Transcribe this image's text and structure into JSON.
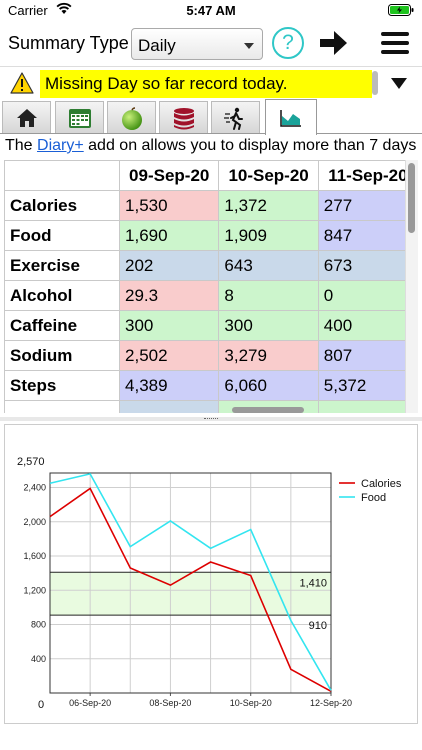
{
  "status_bar": {
    "carrier": "Carrier",
    "time": "5:47 AM"
  },
  "toolbar": {
    "label": "Summary Type",
    "selected": "Daily",
    "help": "?"
  },
  "alert": {
    "message": "Missing Day so far record today."
  },
  "tabs": [
    {
      "icon": "home-icon"
    },
    {
      "icon": "calendar-icon"
    },
    {
      "icon": "apple-icon"
    },
    {
      "icon": "database-icon"
    },
    {
      "icon": "walking-person-icon"
    },
    {
      "icon": "area-chart-icon",
      "active": true
    }
  ],
  "info": {
    "prefix": "The ",
    "link": "Diary+",
    "suffix": " add on allows you to display more than 7 days"
  },
  "table": {
    "columns": [
      "09-Sep-20",
      "10-Sep-20",
      "11-Sep-20"
    ],
    "rows": [
      {
        "label": "Calories",
        "cells": [
          {
            "v": "1,530",
            "c": "red"
          },
          {
            "v": "1,372",
            "c": "green"
          },
          {
            "v": "277",
            "c": "purple"
          }
        ]
      },
      {
        "label": "Food",
        "cells": [
          {
            "v": "1,690",
            "c": "green"
          },
          {
            "v": "1,909",
            "c": "green"
          },
          {
            "v": "847",
            "c": "purple"
          }
        ]
      },
      {
        "label": "Exercise",
        "cells": [
          {
            "v": "202",
            "c": "blue"
          },
          {
            "v": "643",
            "c": "blue"
          },
          {
            "v": "673",
            "c": "blue"
          }
        ]
      },
      {
        "label": "Alcohol",
        "cells": [
          {
            "v": "29.3",
            "c": "red"
          },
          {
            "v": "8",
            "c": "green"
          },
          {
            "v": "0",
            "c": "green"
          }
        ]
      },
      {
        "label": "Caffeine",
        "cells": [
          {
            "v": "300",
            "c": "green"
          },
          {
            "v": "300",
            "c": "green"
          },
          {
            "v": "400",
            "c": "green"
          }
        ]
      },
      {
        "label": "Sodium",
        "cells": [
          {
            "v": "2,502",
            "c": "red"
          },
          {
            "v": "3,279",
            "c": "red"
          },
          {
            "v": "807",
            "c": "purple"
          }
        ]
      },
      {
        "label": "Steps",
        "cells": [
          {
            "v": "4,389",
            "c": "purple"
          },
          {
            "v": "6,060",
            "c": "purple"
          },
          {
            "v": "5,372",
            "c": "purple"
          }
        ]
      },
      {
        "label": "",
        "cells": [
          {
            "v": "",
            "c": "blue"
          },
          {
            "v": "",
            "c": "green"
          },
          {
            "v": "",
            "c": "green"
          }
        ]
      }
    ]
  },
  "colors": {
    "red": "#dd0000",
    "cyan": "#33e5f0",
    "band": "#e9fbe0",
    "help": "#2fc7c7",
    "alert": "#ffff00",
    "link": "#1a5fd6"
  },
  "chart_data": {
    "type": "line",
    "x": [
      "05-Sep-20",
      "06-Sep-20",
      "07-Sep-20",
      "08-Sep-20",
      "09-Sep-20",
      "10-Sep-20",
      "11-Sep-20",
      "12-Sep-20"
    ],
    "x_tick_labels": [
      "06-Sep-20",
      "08-Sep-20",
      "10-Sep-20",
      "12-Sep-20"
    ],
    "y_ticks": [
      "400",
      "800",
      "1,200",
      "1,600",
      "2,000",
      "2,400"
    ],
    "y_top_label": "2,570",
    "y_zero_label": "0",
    "ylim": [
      0,
      2570
    ],
    "series": [
      {
        "name": "Calories",
        "color": "#dd0000",
        "values": [
          2060,
          2390,
          1460,
          1260,
          1530,
          1372,
          277,
          20
        ]
      },
      {
        "name": "Food",
        "color": "#33e5f0",
        "values": [
          2450,
          2560,
          1710,
          2010,
          1690,
          1909,
          847,
          30
        ]
      }
    ],
    "band": {
      "low": 910,
      "high": 1410,
      "low_label": "910",
      "high_label": "1,410"
    },
    "legend": "top-right",
    "grid": true
  }
}
